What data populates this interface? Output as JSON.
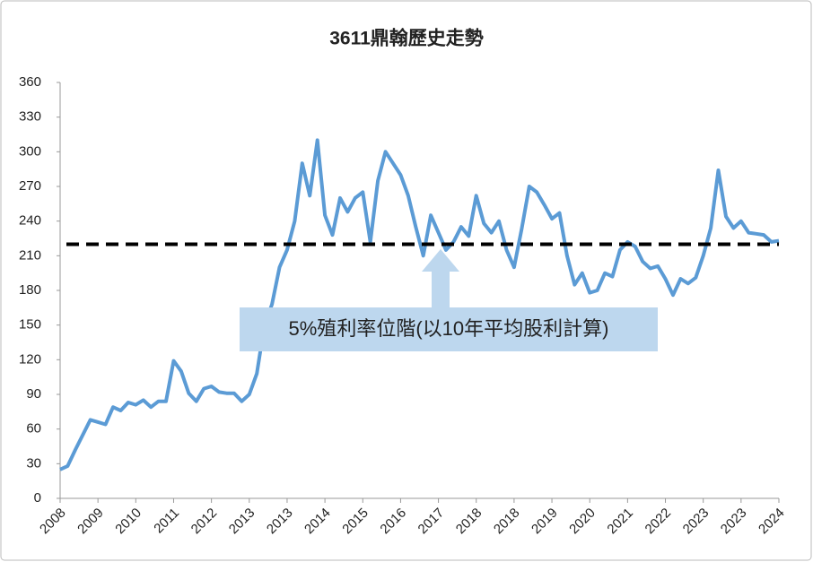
{
  "chart_data": {
    "type": "line",
    "title": "3611鼎翰歷史走勢",
    "categories": [
      "2008",
      null,
      null,
      null,
      null,
      "2009",
      null,
      null,
      null,
      null,
      "2010",
      null,
      null,
      null,
      null,
      "2011",
      null,
      null,
      null,
      null,
      "2012",
      null,
      null,
      null,
      null,
      "2013",
      null,
      null,
      null,
      null,
      "2013",
      null,
      null,
      null,
      null,
      "2014",
      null,
      null,
      null,
      null,
      "2015",
      null,
      null,
      null,
      null,
      "2016",
      null,
      null,
      null,
      null,
      "2017",
      null,
      null,
      null,
      null,
      "2018",
      null,
      null,
      null,
      null,
      "2018",
      null,
      null,
      null,
      null,
      "2019",
      null,
      null,
      null,
      null,
      "2020",
      null,
      null,
      null,
      null,
      "2021",
      null,
      null,
      null,
      null,
      "2022",
      null,
      null,
      null,
      null,
      "2023",
      null,
      null,
      null,
      null,
      "2023",
      null,
      null,
      null,
      null,
      "2024"
    ],
    "series": [
      {
        "color": "#5b9bd5",
        "values": [
          25,
          28,
          42,
          55,
          68,
          66,
          64,
          79,
          76,
          83,
          81,
          85,
          79,
          84,
          84,
          119,
          110,
          91,
          84,
          95,
          97,
          92,
          91,
          91,
          84,
          90,
          108,
          150,
          168,
          200,
          215,
          240,
          290,
          262,
          310,
          245,
          228,
          260,
          248,
          260,
          265,
          222,
          275,
          300,
          290,
          280,
          262,
          235,
          210,
          245,
          230,
          215,
          222,
          235,
          227,
          262,
          238,
          230,
          240,
          215,
          200,
          233,
          270,
          265,
          254,
          242,
          247,
          210,
          185,
          195,
          178,
          180,
          195,
          192,
          215,
          222,
          218,
          205,
          199,
          201,
          190,
          176,
          190,
          186,
          191,
          210,
          234,
          284,
          244,
          234,
          240,
          230,
          229,
          228,
          222,
          223
        ]
      }
    ],
    "reference_line": {
      "value": 220,
      "color": "#000000"
    },
    "annotation": "5%殖利率位階(以10年平均股利計算)",
    "ylim": [
      0,
      360
    ],
    "yticks": [
      0,
      30,
      60,
      90,
      120,
      150,
      180,
      210,
      240,
      270,
      300,
      330,
      360
    ]
  }
}
